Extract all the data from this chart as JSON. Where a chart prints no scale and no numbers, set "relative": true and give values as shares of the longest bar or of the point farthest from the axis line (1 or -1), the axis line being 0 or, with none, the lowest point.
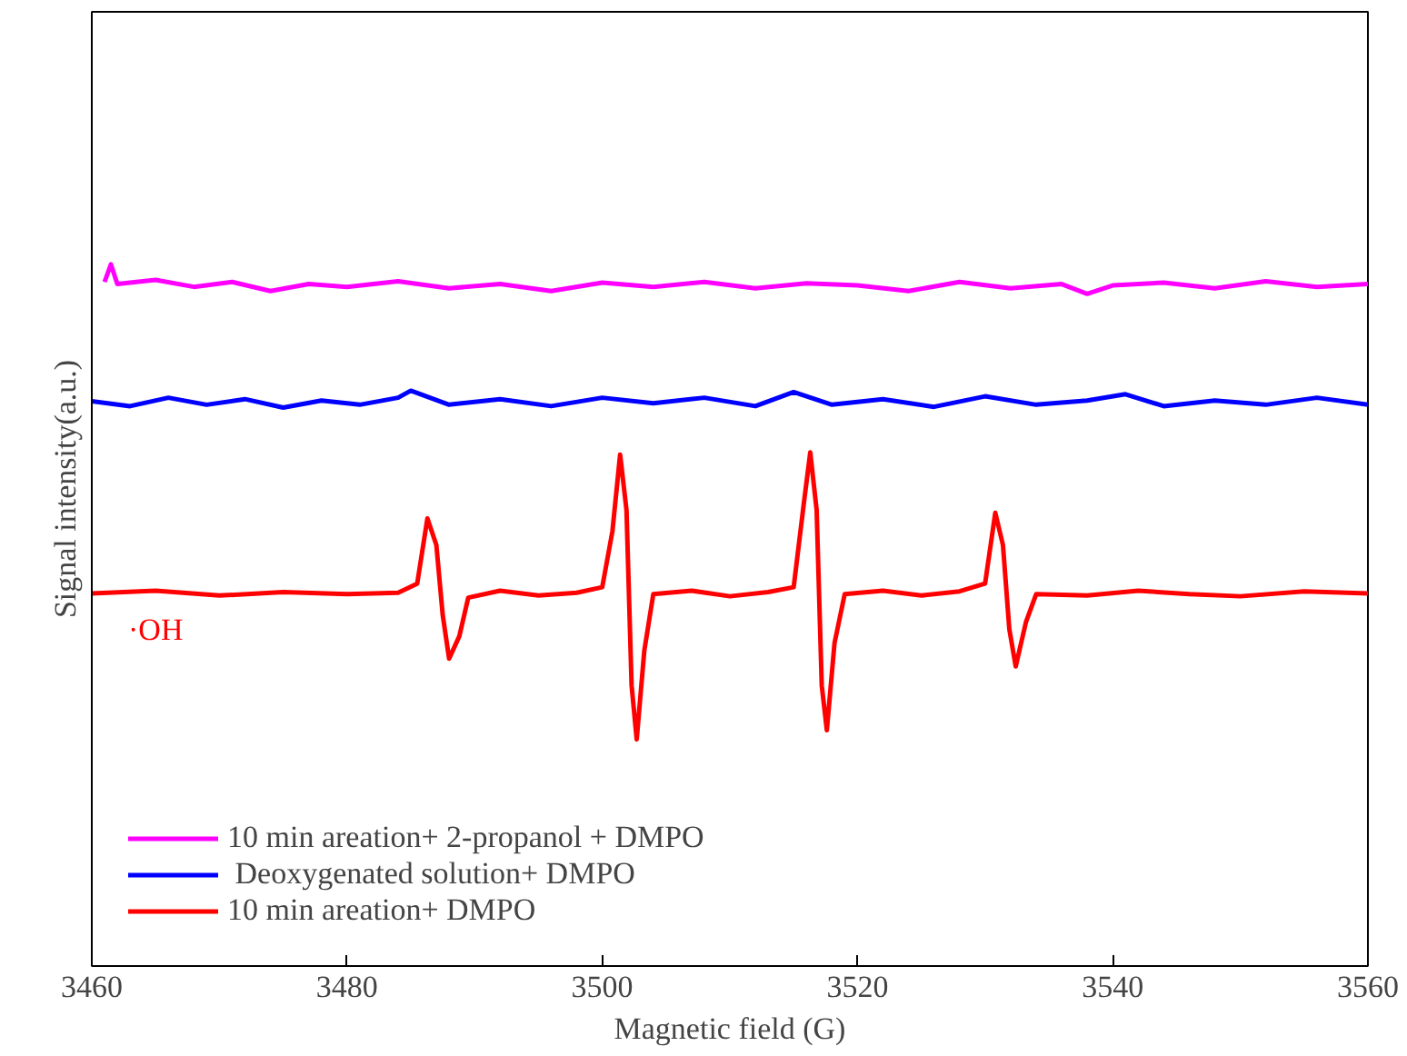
{
  "chart_data": {
    "type": "line",
    "relative": true,
    "xlabel": "Magnetic field (G)",
    "ylabel": "Signal intensity(a.u.)",
    "xlim": [
      3460,
      3560
    ],
    "xticks": [
      3460,
      3480,
      3500,
      3520,
      3540,
      3560
    ],
    "legend": "bottom left",
    "grid": false,
    "line_style": "solid",
    "marker": "none",
    "series": [
      {
        "name": "10 min areation+ 2-propanol + DMPO",
        "color": "#ff00ff",
        "x": [
          3461,
          3461.5,
          3462,
          3465,
          3468,
          3471,
          3474,
          3477,
          3480,
          3484,
          3488,
          3492,
          3496,
          3500,
          3504,
          3508,
          3512,
          3516,
          3520,
          3524,
          3528,
          3532,
          3536,
          3538,
          3540,
          3544,
          3548,
          3552,
          3556,
          3560
        ],
        "values": [
          0.975,
          1.0,
          0.972,
          0.978,
          0.968,
          0.975,
          0.962,
          0.972,
          0.968,
          0.976,
          0.966,
          0.972,
          0.962,
          0.974,
          0.968,
          0.975,
          0.966,
          0.973,
          0.97,
          0.962,
          0.975,
          0.966,
          0.972,
          0.958,
          0.97,
          0.974,
          0.966,
          0.976,
          0.968,
          0.972
        ]
      },
      {
        "name": " Deoxygenated solution+ DMPO",
        "color": "#0000ff",
        "x": [
          3460,
          3463,
          3466,
          3469,
          3472,
          3475,
          3478,
          3481,
          3484,
          3485,
          3488,
          3492,
          3496,
          3500,
          3504,
          3508,
          3512,
          3515,
          3518,
          3522,
          3526,
          3530,
          3534,
          3538,
          3541,
          3544,
          3548,
          3552,
          3556,
          3560
        ],
        "values": [
          0.805,
          0.798,
          0.81,
          0.8,
          0.808,
          0.796,
          0.806,
          0.8,
          0.81,
          0.82,
          0.8,
          0.808,
          0.798,
          0.81,
          0.802,
          0.81,
          0.798,
          0.818,
          0.8,
          0.808,
          0.797,
          0.812,
          0.8,
          0.806,
          0.815,
          0.798,
          0.806,
          0.8,
          0.81,
          0.8
        ]
      },
      {
        "name": "10 min areation+ DMPO",
        "color": "#ff0000",
        "x": [
          3460,
          3465,
          3470,
          3475,
          3480,
          3484,
          3485.5,
          3486.3,
          3487.0,
          3487.5,
          3488.0,
          3488.8,
          3489.5,
          3492,
          3495,
          3498,
          3500,
          3500.8,
          3501.4,
          3501.9,
          3502.3,
          3502.7,
          3503.3,
          3504,
          3507,
          3510,
          3513,
          3515,
          3515.8,
          3516.3,
          3516.8,
          3517.2,
          3517.6,
          3518.2,
          3519,
          3522,
          3525,
          3528,
          3530,
          3530.8,
          3531.4,
          3531.9,
          3532.4,
          3533.2,
          3534,
          3538,
          3542,
          3546,
          3550,
          3555,
          3560
        ],
        "values": [
          0.531,
          0.535,
          0.528,
          0.533,
          0.53,
          0.532,
          0.545,
          0.638,
          0.6,
          0.5,
          0.438,
          0.47,
          0.525,
          0.535,
          0.528,
          0.532,
          0.54,
          0.62,
          0.729,
          0.65,
          0.4,
          0.323,
          0.45,
          0.53,
          0.535,
          0.527,
          0.533,
          0.54,
          0.66,
          0.732,
          0.65,
          0.4,
          0.336,
          0.46,
          0.53,
          0.535,
          0.528,
          0.534,
          0.545,
          0.646,
          0.6,
          0.48,
          0.427,
          0.49,
          0.53,
          0.528,
          0.535,
          0.53,
          0.527,
          0.534,
          0.531
        ]
      }
    ],
    "annotations": [
      "·OH"
    ]
  }
}
